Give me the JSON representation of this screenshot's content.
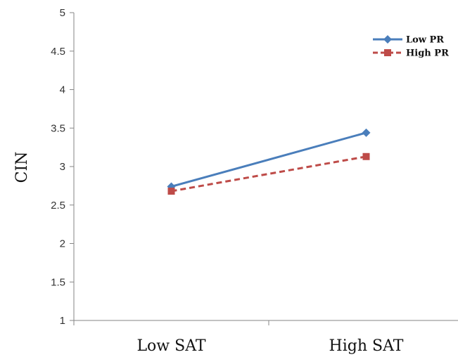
{
  "chart_data": {
    "type": "line",
    "title": "",
    "xlabel": "",
    "ylabel": "CIN",
    "categories": [
      "Low SAT",
      "High SAT"
    ],
    "ylim": [
      1,
      5
    ],
    "yticks": [
      "1",
      "1.5",
      "2",
      "2.5",
      "3",
      "3.5",
      "4",
      "4.5",
      "5"
    ],
    "grid": false,
    "legend_position": "top-right",
    "series": [
      {
        "name": "Low PR",
        "values": [
          2.74,
          3.44
        ],
        "color": "#4a7ebb",
        "line_style": "solid",
        "marker": "diamond"
      },
      {
        "name": "High PR",
        "values": [
          2.68,
          3.13
        ],
        "color": "#be4b48",
        "line_style": "dashed",
        "marker": "square"
      }
    ]
  }
}
